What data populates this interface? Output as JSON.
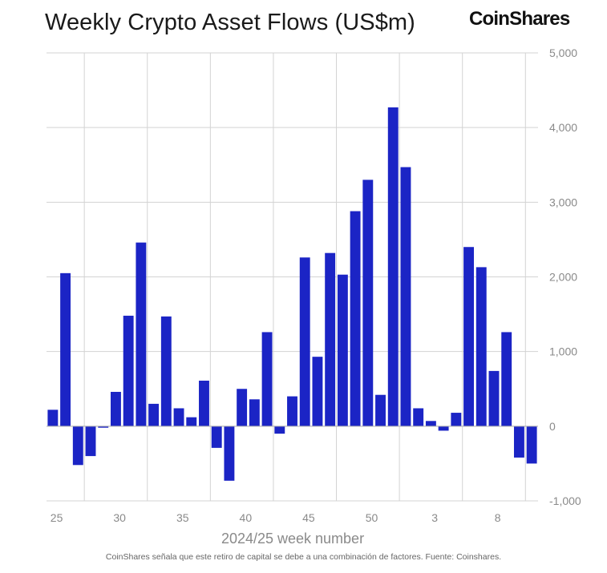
{
  "title": "Weekly Crypto Asset Flows (US$m)",
  "brand": "CoinShares",
  "caption": "CoinShares señala que este retiro de capital se debe a una combinación de factores. Fuente: Coinshares.",
  "colors": {
    "bar": "#1b24c5",
    "grid": "#d3d3d3",
    "text": "#8a8a8a"
  },
  "chart_data": {
    "type": "bar",
    "xlabel": "2024/25 week number",
    "ylabel": "",
    "ylim": [
      -1000,
      5000
    ],
    "y_ticks": [
      5000,
      4000,
      3000,
      2000,
      1000,
      0,
      -1000
    ],
    "y_tick_labels": [
      "5,000",
      "4,000",
      "3,000",
      "2,000",
      "1,000",
      "0",
      "-1,000"
    ],
    "y_axis_position": "right",
    "grid": true,
    "x_tick_labels": [
      {
        "label": "25",
        "after_category": 24
      },
      {
        "label": "30",
        "after_category": 29
      },
      {
        "label": "35",
        "after_category": 34
      },
      {
        "label": "40",
        "after_category": 39
      },
      {
        "label": "45",
        "after_category": 44
      },
      {
        "label": "50",
        "after_category": 49
      },
      {
        "label": "3",
        "after_category": 2
      },
      {
        "label": "8",
        "after_category": 7
      }
    ],
    "categories": [
      "22",
      "23",
      "24",
      "25",
      "26",
      "27",
      "28",
      "29",
      "30",
      "31",
      "32",
      "33",
      "34",
      "35",
      "36",
      "37",
      "38",
      "39",
      "40",
      "41",
      "42",
      "43",
      "44",
      "45",
      "46",
      "47",
      "48",
      "49",
      "50",
      "51",
      "52",
      "1",
      "2",
      "3",
      "4",
      "5",
      "6",
      "7",
      "8"
    ],
    "values": [
      220,
      2050,
      -520,
      -400,
      -20,
      460,
      1480,
      2460,
      300,
      1470,
      240,
      120,
      610,
      -290,
      -730,
      500,
      360,
      1260,
      -100,
      400,
      2260,
      930,
      2320,
      2030,
      2880,
      3300,
      420,
      4270,
      3470,
      240,
      70,
      -60,
      180,
      2400,
      2130,
      740,
      1260,
      -420,
      -500
    ]
  }
}
